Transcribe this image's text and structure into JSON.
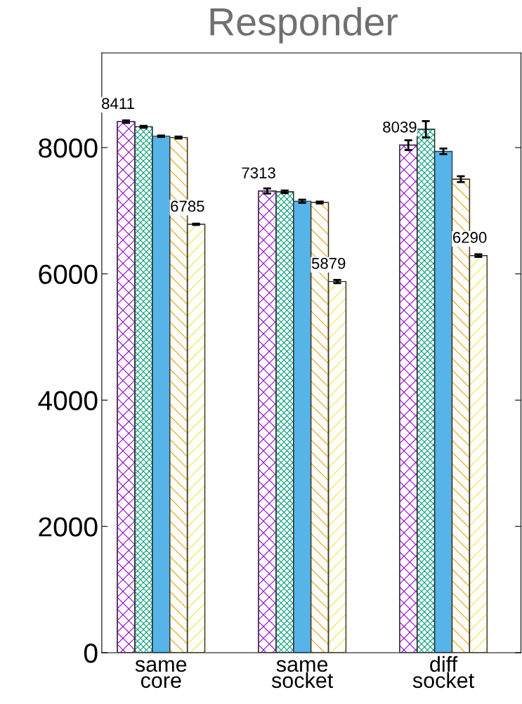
{
  "chart_data": {
    "type": "bar",
    "title": "Responder",
    "categories": [
      "same\ncore",
      "same\nsocket",
      "diff\nsocket"
    ],
    "series": [
      {
        "color": "#9400d3",
        "values": [
          8411,
          7313,
          8039
        ],
        "errors": [
          20,
          40,
          78
        ],
        "value_labels": [
          "8411",
          "7313",
          "8039"
        ]
      },
      {
        "color": "#009e73",
        "values": [
          8330,
          7300,
          8290
        ],
        "errors": [
          15,
          20,
          130
        ]
      },
      {
        "color": "#56b4e9",
        "values": [
          8180,
          7150,
          7940
        ],
        "errors": [
          10,
          25,
          45
        ]
      },
      {
        "color": "#e69f00",
        "values": [
          8160,
          7130,
          7500
        ],
        "errors": [
          15,
          15,
          45
        ]
      },
      {
        "color": "#f0e442",
        "values": [
          6785,
          5879,
          6290
        ],
        "errors": [
          10,
          25,
          20
        ],
        "value_labels": [
          "6785",
          "5879",
          "6290"
        ]
      }
    ],
    "ylim": [
      0,
      9500
    ],
    "yticks": [
      0,
      2000,
      4000,
      6000,
      8000
    ],
    "grid": false,
    "legend": false
  }
}
